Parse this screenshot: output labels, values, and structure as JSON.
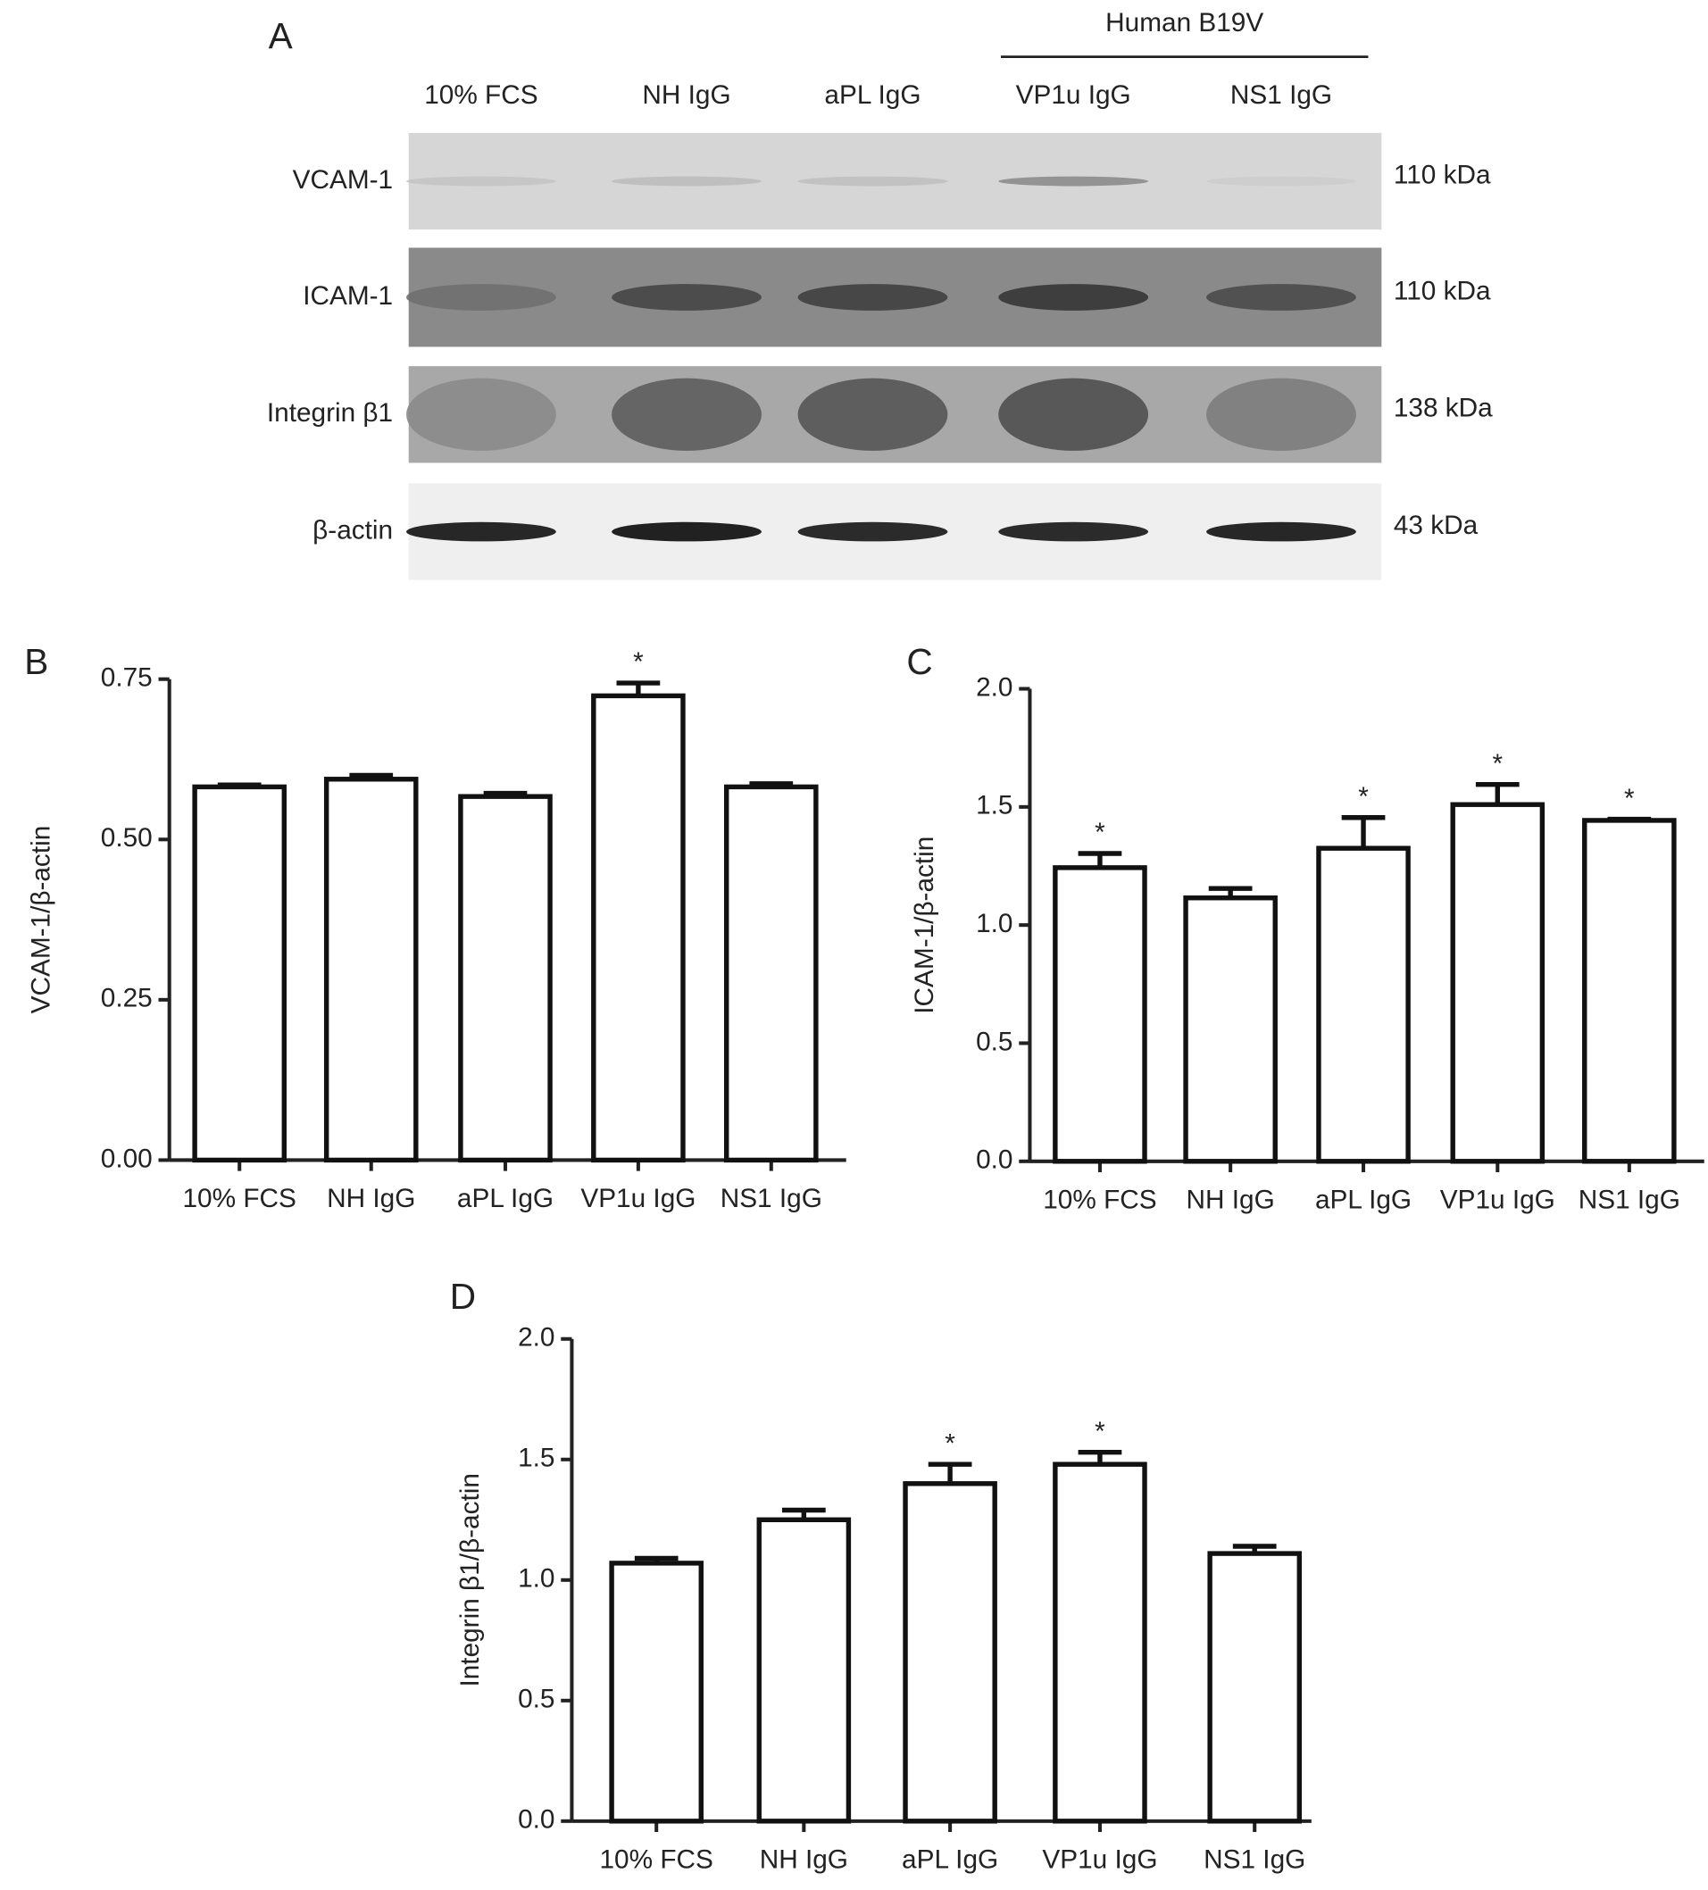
{
  "panel_a": {
    "label": "A",
    "group_label": "Human B19V",
    "lanes": [
      "10% FCS",
      "NH IgG",
      "aPL IgG",
      "VP1u IgG",
      "NS1 IgG"
    ],
    "rows": [
      {
        "name": "VCAM-1",
        "size": "110 kDa"
      },
      {
        "name": "ICAM-1",
        "size": "110 kDa"
      },
      {
        "name": "Integrin β1",
        "size": "138 kDa"
      },
      {
        "name": "β-actin",
        "size": "43 kDa"
      }
    ]
  },
  "chart_data": [
    {
      "type": "bar",
      "label": "B",
      "ylabel": "VCAM-1/β-actin",
      "categories": [
        "10% FCS",
        "NH IgG",
        "aPL IgG",
        "VP1u IgG",
        "NS1 IgG"
      ],
      "values": [
        0.582,
        0.594,
        0.567,
        0.724,
        0.582
      ],
      "errors": [
        0.003,
        0.006,
        0.005,
        0.02,
        0.005
      ],
      "significance": [
        null,
        null,
        null,
        "*",
        null
      ],
      "ylim": [
        0,
        0.75
      ],
      "yticks": [
        {
          "value": 0,
          "label": "0.00"
        },
        {
          "value": 0.25,
          "label": "0.25"
        },
        {
          "value": 0.5,
          "label": "0.50"
        },
        {
          "value": 0.75,
          "label": "0.75"
        }
      ],
      "color": "#ffffff"
    },
    {
      "type": "bar",
      "label": "C",
      "ylabel": "ICAM-1/β-actin",
      "categories": [
        "10% FCS",
        "NH IgG",
        "aPL IgG",
        "VP1u IgG",
        "NS1 IgG"
      ],
      "values": [
        1.243,
        1.115,
        1.325,
        1.51,
        1.443
      ],
      "errors": [
        0.06,
        0.04,
        0.13,
        0.085,
        0.005
      ],
      "significance": [
        "*",
        null,
        "*",
        "*",
        "*"
      ],
      "ylim": [
        0,
        2
      ],
      "yticks": [
        {
          "value": 0,
          "label": "0.0"
        },
        0.5,
        {
          "value": 1,
          "label": "1.0"
        },
        1.5,
        {
          "value": 2,
          "label": "2.0"
        }
      ],
      "color": "#ffffff"
    },
    {
      "type": "bar",
      "label": "D",
      "ylabel": "Integrin β1/β-actin",
      "categories": [
        "10% FCS",
        "NH IgG",
        "aPL IgG",
        "VP1u IgG",
        "NS1 IgG"
      ],
      "values": [
        1.07,
        1.25,
        1.4,
        1.48,
        1.11
      ],
      "errors": [
        0.02,
        0.04,
        0.08,
        0.05,
        0.03
      ],
      "significance": [
        null,
        null,
        "*",
        "*",
        null
      ],
      "ylim": [
        0,
        2
      ],
      "yticks": [
        {
          "value": 0,
          "label": "0.0"
        },
        0.5,
        {
          "value": 1,
          "label": "1.0"
        },
        1.5,
        {
          "value": 2,
          "label": "2.0"
        }
      ],
      "color": "#ffffff"
    }
  ]
}
